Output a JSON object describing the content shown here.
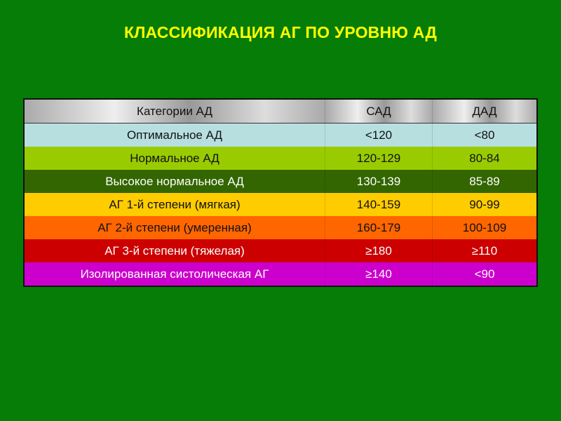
{
  "title": "КЛАССИФИКАЦИЯ АГ ПО УРОВНЮ АД",
  "table": {
    "headers": [
      "Категории АД",
      "САД",
      "ДАД"
    ],
    "rows": [
      {
        "cells": [
          "Оптимальное АД",
          "<120",
          "<80"
        ],
        "bg": "#b7dfe0",
        "fg": "#111111"
      },
      {
        "cells": [
          "Нормальное АД",
          "120-129",
          "80-84"
        ],
        "bg": "#99cc00",
        "fg": "#111111"
      },
      {
        "cells": [
          "Высокое нормальное АД",
          "130-139",
          "85-89"
        ],
        "bg": "#336600",
        "fg": "#ffffff"
      },
      {
        "cells": [
          "АГ 1-й степени (мягкая)",
          "140-159",
          "90-99"
        ],
        "bg": "#ffcc00",
        "fg": "#111111"
      },
      {
        "cells": [
          "АГ 2-й степени (умеренная)",
          "160-179",
          "100-109"
        ],
        "bg": "#ff6600",
        "fg": "#111111"
      },
      {
        "cells": [
          "АГ 3-й степени (тяжелая)",
          "≥180",
          "≥110"
        ],
        "bg": "#cc0000",
        "fg": "#ffffff"
      },
      {
        "cells": [
          "Изолированная систолическая АГ",
          "≥140",
          "<90"
        ],
        "bg": "#cc00cc",
        "fg": "#ffffff"
      }
    ]
  }
}
